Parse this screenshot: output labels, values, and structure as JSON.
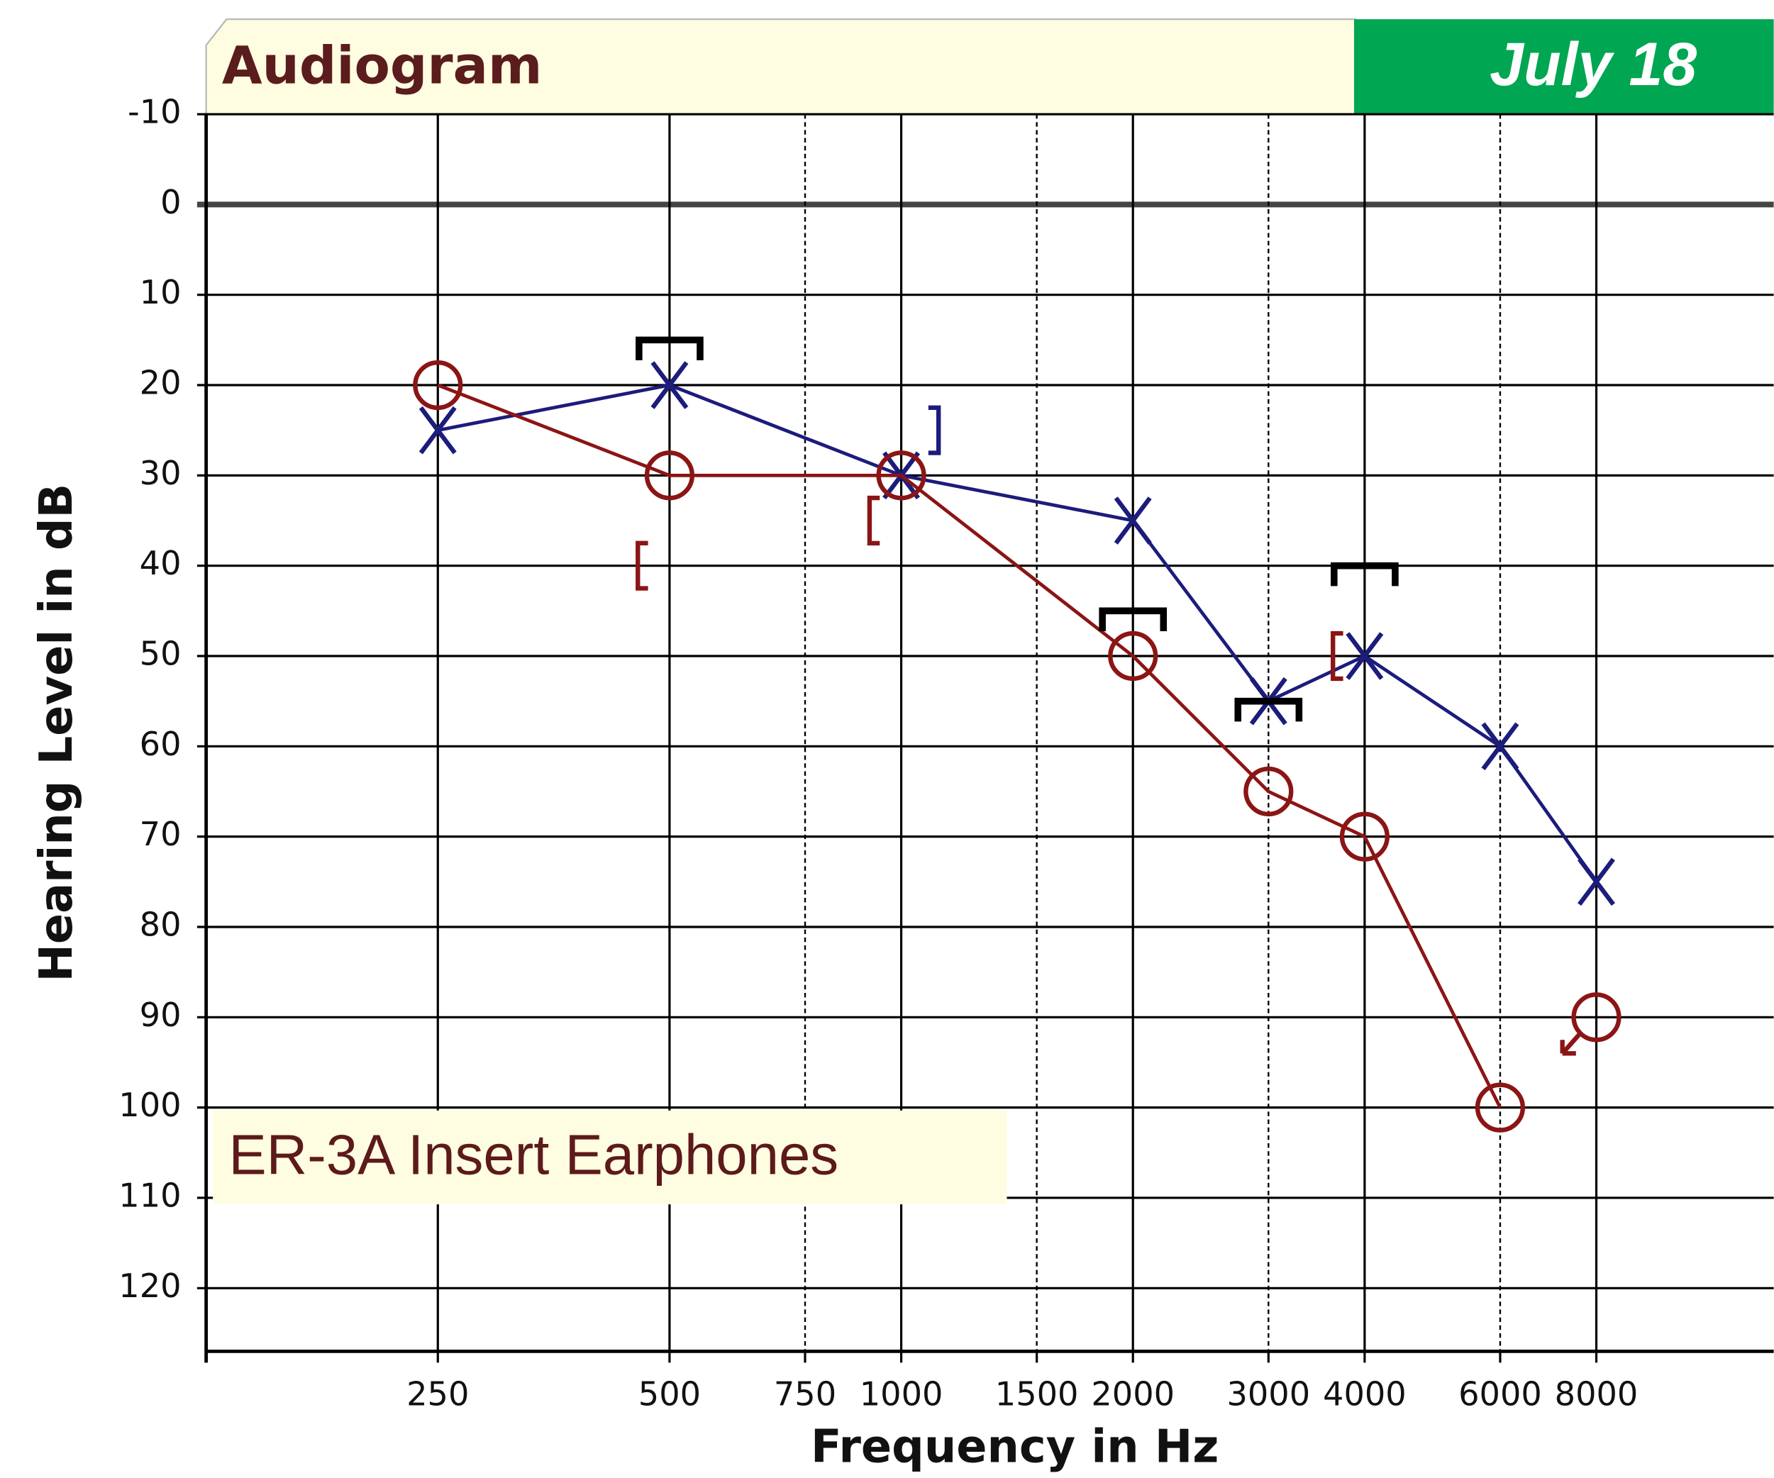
{
  "chart_data": {
    "type": "audiogram",
    "title": "Audiogram",
    "date": "July 18",
    "annotation": "ER-3A Insert Earphones",
    "xlabel": "Frequency in Hz",
    "ylabel": "Hearing Level in dB",
    "xscale": "log",
    "xlim": [
      125,
      13600
    ],
    "xticks": [
      250,
      500,
      1000,
      2000,
      4000,
      8000
    ],
    "xticks_minor": [
      750,
      1500,
      3000,
      6000
    ],
    "ylim": [
      -10,
      127
    ],
    "y_inverted": true,
    "yticks": [
      -10,
      0,
      10,
      20,
      30,
      40,
      50,
      60,
      70,
      80,
      90,
      100,
      110,
      120
    ],
    "grid": true,
    "zero_line": true,
    "series": [
      {
        "symbol": "x",
        "color": "#1c1c7c",
        "line": true,
        "x": [
          250,
          500,
          1000,
          2000,
          3000,
          4000,
          6000,
          8000
        ],
        "values": [
          25,
          20,
          30,
          35,
          55,
          50,
          60,
          75
        ]
      },
      {
        "symbol": "o",
        "color": "#8b1515",
        "line": true,
        "x": [
          250,
          500,
          1000,
          2000,
          3000,
          4000,
          6000,
          8000
        ],
        "values": [
          20,
          30,
          30,
          50,
          65,
          70,
          100,
          90
        ],
        "no_response": [
          false,
          false,
          false,
          false,
          false,
          false,
          false,
          true
        ]
      },
      {
        "symbol": "[",
        "color": "#8b1515",
        "line": false,
        "x": [
          500,
          1000,
          4000
        ],
        "values": [
          40,
          35,
          50
        ]
      },
      {
        "symbol": "]",
        "color": "#1c1c7c",
        "line": false,
        "x": [
          1000
        ],
        "values": [
          25
        ]
      },
      {
        "symbol": "masked",
        "color": "#000000",
        "line": false,
        "x": [
          500,
          2000,
          3000,
          4000
        ],
        "values": [
          15,
          45,
          55,
          40
        ]
      }
    ]
  }
}
